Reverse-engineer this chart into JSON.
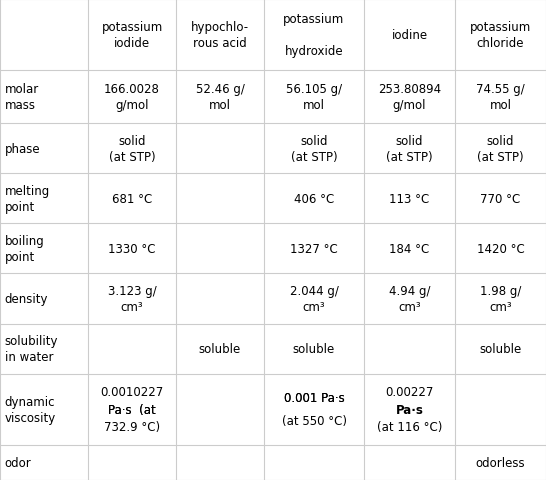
{
  "columns": [
    "",
    "potassium\niodide",
    "hypochlo-\nrous acid",
    "potassium\n\nhydroxide",
    "iodine",
    "potassium\nchloride"
  ],
  "rows": [
    {
      "label": "molar\nmass",
      "values": [
        "166.0028\ng/mol",
        "52.46 g/\nmol",
        "56.105 g/\nmol",
        "253.80894\ng/mol",
        "74.55 g/\nmol"
      ]
    },
    {
      "label": "phase",
      "values": [
        "solid\n(at STP)",
        "",
        "solid\n(at STP)",
        "solid\n(at STP)",
        "solid\n(at STP)"
      ]
    },
    {
      "label": "melting\npoint",
      "values": [
        "681 °C",
        "",
        "406 °C",
        "113 °C",
        "770 °C"
      ]
    },
    {
      "label": "boiling\npoint",
      "values": [
        "1330 °C",
        "",
        "1327 °C",
        "184 °C",
        "1420 °C"
      ]
    },
    {
      "label": "density",
      "values": [
        "3.123 g/\ncm³",
        "",
        "2.044 g/\ncm³",
        "4.94 g/\ncm³",
        "1.98 g/\ncm³"
      ]
    },
    {
      "label": "solubility\nin water",
      "values": [
        "",
        "soluble",
        "soluble",
        "",
        "soluble"
      ]
    },
    {
      "label": "dynamic\nviscosity",
      "values": [
        "0.0010227\nPa·s  (at\n732.9 °C)",
        "",
        "0.001 Pa·s\n(at 550 °C)",
        "0.00227\nPa·s\n(at 116 °C)",
        ""
      ]
    },
    {
      "label": "odor",
      "values": [
        "",
        "",
        "",
        "",
        "odorless"
      ]
    }
  ],
  "background_color": "#ffffff",
  "grid_color": "#cccccc",
  "text_color": "#000000",
  "header_fontsize": 8.5,
  "cell_fontsize": 8.5,
  "label_fontsize": 8.5
}
